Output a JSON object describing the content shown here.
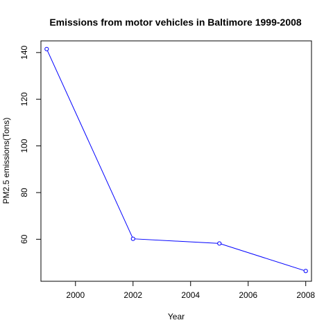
{
  "chart_data": {
    "type": "line",
    "title": "Emissions from motor vehicles in Baltimore 1999-2008",
    "xlabel": "Year",
    "ylabel": "PM2.5 emissions(Tons)",
    "x": [
      1999,
      2002,
      2005,
      2008
    ],
    "series": [
      {
        "values": [
          141.5,
          60.2,
          58.2,
          46.4
        ]
      }
    ],
    "xlim": [
      1998.8,
      2008.2
    ],
    "ylim": [
      42,
      145
    ],
    "xticks": [
      2000,
      2002,
      2004,
      2006,
      2008
    ],
    "yticks": [
      60,
      80,
      100,
      120,
      140
    ],
    "xtick_labels": [
      "2000",
      "2002",
      "2004",
      "2006",
      "2008"
    ],
    "ytick_labels": [
      "60",
      "80",
      "100",
      "120",
      "140"
    ],
    "grid": false,
    "line_color": "#0000ff",
    "marker": "open-circle"
  }
}
